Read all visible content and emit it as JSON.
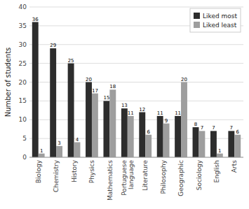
{
  "chart_data": {
    "type": "bar",
    "categories": [
      "Biology",
      "Chemistry",
      "History",
      "Physics",
      "Mathematics",
      "Portuguese\nlanguage",
      "Literature",
      "Philosophy",
      "Geographic",
      "Sociology",
      "English",
      "Arts"
    ],
    "series": [
      {
        "name": "Liked most",
        "color": "#2d2d2d",
        "values": [
          36,
          29,
          25,
          20,
          15,
          13,
          12,
          11,
          11,
          8,
          7,
          7
        ]
      },
      {
        "name": "Liked least",
        "color": "#9e9e9e",
        "values": [
          1,
          3,
          4,
          17,
          18,
          11,
          6,
          9,
          20,
          7,
          1,
          6
        ]
      }
    ],
    "ylabel": "Number of students",
    "ylim": [
      0,
      40
    ],
    "yticks": [
      0,
      5,
      10,
      15,
      20,
      25,
      30,
      35,
      40
    ],
    "grid": true,
    "legend": "upper right",
    "data_labels": true
  }
}
